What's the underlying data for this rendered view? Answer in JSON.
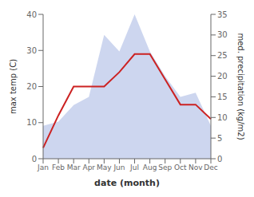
{
  "chart_data": {
    "type": "line",
    "xlabel": "date (month)",
    "ylabel": "max temp (C)",
    "y2label": "med. precipitation (kg/m2)",
    "categories": [
      "Jan",
      "Feb",
      "Mar",
      "Apr",
      "May",
      "Jun",
      "Jul",
      "Aug",
      "Sep",
      "Oct",
      "Nov",
      "Dec"
    ],
    "series": [
      {
        "type": "area",
        "color": "#b8c4e8",
        "axis": "y2",
        "values": [
          8,
          9,
          13,
          15,
          30,
          26,
          35,
          26,
          20,
          15,
          16,
          8
        ]
      },
      {
        "type": "line",
        "color": "#cc2222",
        "values": [
          3,
          12,
          20,
          20,
          20,
          24,
          29,
          29,
          22,
          15,
          15,
          11
        ]
      }
    ],
    "ylim": [
      0,
      40
    ],
    "yticks": [
      0,
      10,
      20,
      30,
      40
    ],
    "y2lim": [
      0,
      35
    ],
    "y2ticks": [
      0,
      5,
      10,
      15,
      20,
      25,
      30,
      35
    ],
    "grid": false
  }
}
